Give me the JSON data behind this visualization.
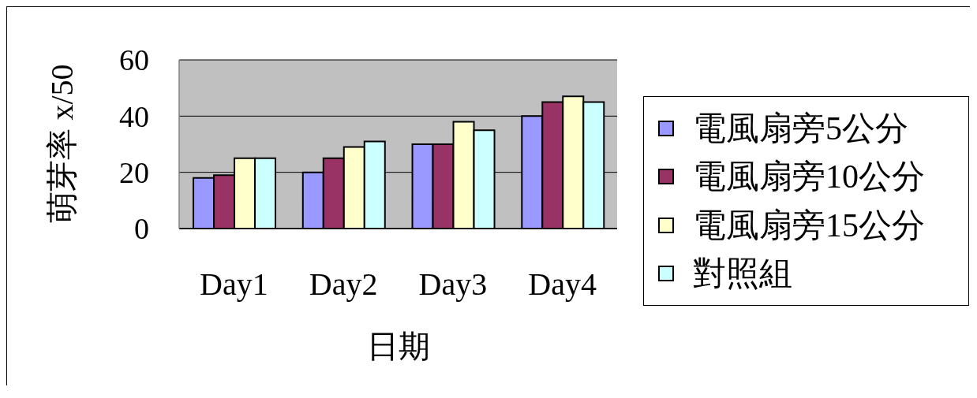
{
  "chart_data": {
    "type": "bar",
    "xlabel": "日期",
    "ylabel": "萌芽率 x/50",
    "categories": [
      "Day1",
      "Day2",
      "Day3",
      "Day4"
    ],
    "series": [
      {
        "name": "電風扇旁5公分",
        "color": "#9999ff",
        "values": [
          18,
          20,
          30,
          40
        ]
      },
      {
        "name": "電風扇旁10公分",
        "color": "#993366",
        "values": [
          19,
          25,
          30,
          45
        ]
      },
      {
        "name": "電風扇旁15公分",
        "color": "#ffffcc",
        "values": [
          25,
          29,
          38,
          47
        ]
      },
      {
        "name": "對照組",
        "color": "#ccffff",
        "values": [
          25,
          31,
          35,
          45
        ]
      }
    ],
    "ylim": [
      0,
      60
    ],
    "yticks": [
      0,
      20,
      40,
      60
    ],
    "grid": "y",
    "legend": "right"
  }
}
